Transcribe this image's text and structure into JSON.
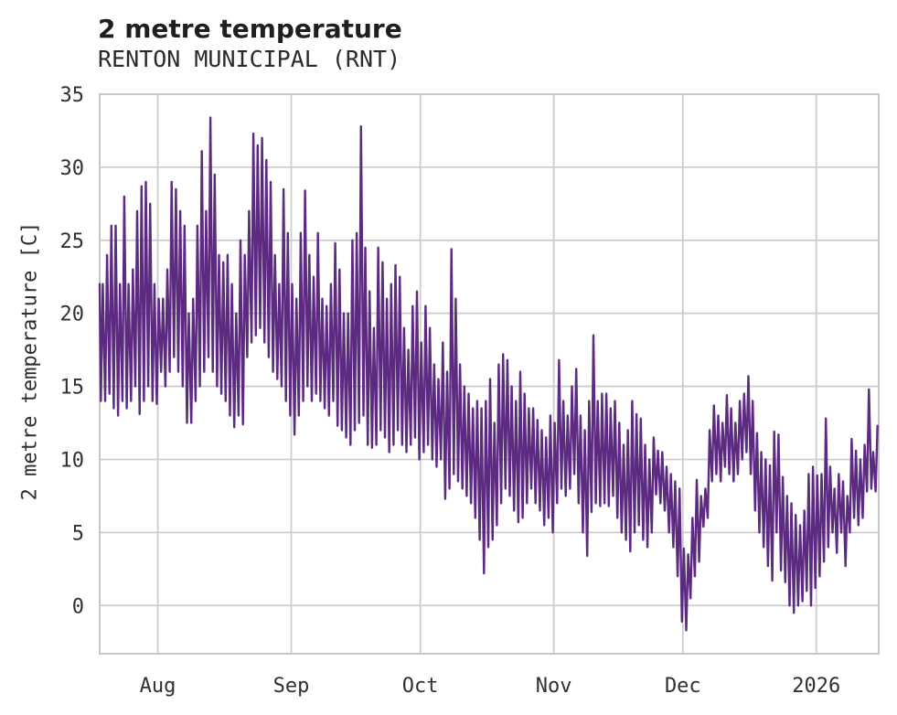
{
  "page": {
    "title": "2 metre temperature",
    "subtitle": "RENTON MUNICIPAL (RNT)"
  },
  "colors": {
    "grid": "#cdcdcd",
    "spine": "#c7c7c7",
    "line": "#5c2a80",
    "text": "#303030"
  },
  "chart_data": {
    "type": "line",
    "title": "2 metre temperature",
    "subtitle": "RENTON MUNICIPAL (RNT)",
    "station": "RENTON MUNICIPAL (RNT)",
    "ylabel": "2 metre temperature [C]",
    "xlabel": "",
    "line_color": "#5c2a80",
    "grid": true,
    "legend": "none",
    "ylim": [
      -3.3,
      35.0
    ],
    "yticks": [
      0,
      5,
      10,
      15,
      20,
      25,
      30,
      35
    ],
    "xticks": [
      {
        "label": "Aug",
        "day": 13.5
      },
      {
        "label": "Sep",
        "day": 44.5
      },
      {
        "label": "Oct",
        "day": 74.5
      },
      {
        "label": "Nov",
        "day": 105.5
      },
      {
        "label": "Dec",
        "day": 135.5
      },
      {
        "label": "2026",
        "day": 166.5
      }
    ],
    "x_start": "2025-07-18",
    "x_end": "2026-01-14",
    "total_days": 181,
    "resolution": "hourly trace, encoded here as daily min/max envelope",
    "left_edge_value": 22,
    "daily_min": [
      14,
      14,
      14.5,
      13.5,
      13,
      14,
      13.5,
      14,
      15,
      13.1,
      14,
      15,
      14,
      13.8,
      16,
      15,
      16,
      17,
      16,
      15,
      12.5,
      12.5,
      14,
      15,
      16,
      17,
      16,
      15,
      14.5,
      14,
      13,
      12.2,
      13,
      12.4,
      17,
      18,
      18.5,
      19,
      18,
      17,
      16,
      15.5,
      15,
      14,
      13,
      11.7,
      13,
      14,
      15,
      14,
      14.5,
      14,
      13.5,
      13,
      14,
      12.3,
      12,
      11.5,
      11,
      12,
      12.5,
      13,
      11,
      10.8,
      11,
      12,
      11.5,
      10.5,
      11,
      12,
      11,
      10.5,
      11,
      11.5,
      10,
      10.5,
      11,
      10,
      9.5,
      10,
      7.3,
      8,
      9,
      8.5,
      8,
      7.5,
      7,
      6,
      4.5,
      2.2,
      4,
      4.5,
      5.5,
      7,
      8,
      7.5,
      6.5,
      5.7,
      6,
      7,
      8,
      7,
      6.5,
      5.5,
      6,
      5,
      7,
      8,
      7.5,
      8,
      9,
      7,
      5,
      3.4,
      6.4,
      7,
      6.8,
      7,
      6.8,
      7.5,
      6,
      5,
      4.5,
      3.7,
      5,
      5.5,
      4.5,
      4,
      5,
      7.6,
      7,
      6.5,
      5,
      4,
      2,
      -1.1,
      -1.7,
      0.5,
      2,
      3,
      5.4,
      6,
      8.5,
      9,
      8.5,
      9.5,
      9,
      8.5,
      9,
      10,
      10.5,
      9,
      6.5,
      5,
      4,
      2.7,
      1.7,
      5,
      2.4,
      1.6,
      0,
      -0.5,
      0,
      0.3,
      1,
      0,
      1.2,
      2,
      3,
      4,
      5,
      3.6,
      5,
      2.7,
      5,
      6,
      5.5,
      6,
      7.8,
      8,
      7.8
    ],
    "daily_max": [
      22,
      24,
      26,
      26,
      22,
      28,
      22,
      23,
      27,
      28.7,
      29,
      27.5,
      22,
      21,
      21,
      23,
      29,
      28.5,
      27,
      26,
      20,
      21,
      26,
      31.1,
      27,
      33.4,
      29.5,
      24,
      23.5,
      24,
      22,
      20,
      25,
      24,
      27,
      32.3,
      31.5,
      32,
      30.5,
      29,
      24,
      22,
      28.5,
      25.5,
      22,
      21,
      25.5,
      28.4,
      24,
      22.5,
      25.5,
      21,
      20.5,
      22,
      24.8,
      23,
      20,
      20,
      25,
      25.5,
      32.8,
      24.5,
      21.5,
      19,
      24.5,
      23.5,
      21,
      22,
      23.3,
      22.5,
      19,
      17.5,
      20.5,
      21.5,
      18,
      20.5,
      19,
      16.5,
      15.5,
      18,
      16,
      24.4,
      21,
      16.5,
      15,
      14.5,
      13.5,
      14,
      13.5,
      14,
      15.5,
      12.5,
      16.5,
      17.2,
      16.8,
      15,
      14,
      16,
      14.5,
      13.5,
      13.5,
      12.7,
      12,
      11.5,
      13,
      12.5,
      16.8,
      14,
      13,
      15,
      16.2,
      13,
      12,
      14,
      18.5,
      14,
      14.5,
      14.5,
      13.5,
      14,
      12.5,
      11,
      12,
      14,
      13.1,
      12.8,
      11,
      10,
      11.5,
      10.6,
      10.5,
      9.5,
      9,
      8.5,
      8,
      3.9,
      3.5,
      6,
      8.6,
      7.5,
      8,
      12,
      13.7,
      13,
      12.5,
      14.4,
      13.5,
      12.5,
      14,
      14.5,
      15.7,
      14,
      11.8,
      10.5,
      10,
      9.6,
      11.9,
      11.7,
      8.8,
      7.5,
      7,
      6.2,
      5.5,
      6.5,
      9,
      9.5,
      8.9,
      9,
      12.8,
      9.5,
      8,
      9,
      8.5,
      7.5,
      11.4,
      10.6,
      10,
      11,
      14.8,
      10.5,
      12.3
    ]
  }
}
